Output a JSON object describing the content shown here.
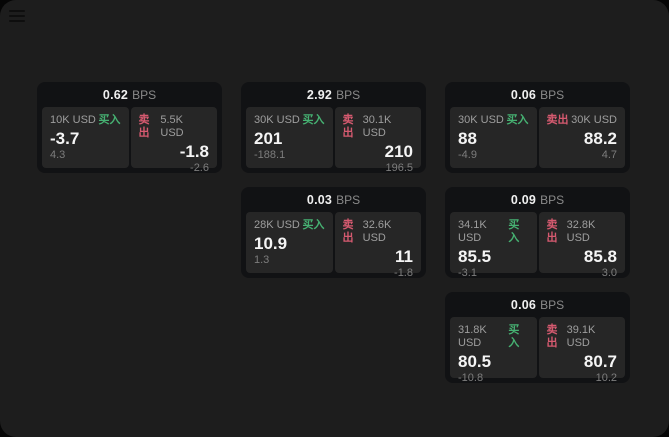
{
  "labels": {
    "bps_suffix": "BPS",
    "buy": "买入",
    "sell": "卖出"
  },
  "colors": {
    "buy_green": "#46b172",
    "sell_red": "#d65a70",
    "window_bg": "#1d1d1d",
    "card_bg": "#111214",
    "panel_bg": "#262626"
  },
  "icons": {
    "menu": "hamburger-menu"
  },
  "cards": [
    {
      "row": 1,
      "col": 1,
      "bps": "0.62",
      "buy": {
        "amount": "10K USD",
        "value": "-3.7",
        "delta": "4.3"
      },
      "sell": {
        "amount": "5.5K USD",
        "value": "-1.8",
        "delta": "-2.6"
      }
    },
    {
      "row": 1,
      "col": 2,
      "bps": "2.92",
      "buy": {
        "amount": "30K USD",
        "value": "201",
        "delta": "-188.1"
      },
      "sell": {
        "amount": "30.1K USD",
        "value": "210",
        "delta": "196.5"
      }
    },
    {
      "row": 1,
      "col": 3,
      "bps": "0.06",
      "buy": {
        "amount": "30K USD",
        "value": "88",
        "delta": "-4.9"
      },
      "sell": {
        "amount": "30K USD",
        "value": "88.2",
        "delta": "4.7"
      }
    },
    {
      "row": 2,
      "col": 2,
      "bps": "0.03",
      "buy": {
        "amount": "28K USD",
        "value": "10.9",
        "delta": "1.3"
      },
      "sell": {
        "amount": "32.6K USD",
        "value": "11",
        "delta": "-1.8"
      }
    },
    {
      "row": 2,
      "col": 3,
      "bps": "0.09",
      "buy": {
        "amount": "34.1K USD",
        "value": "85.5",
        "delta": "-3.1"
      },
      "sell": {
        "amount": "32.8K USD",
        "value": "85.8",
        "delta": "3.0"
      }
    },
    {
      "row": 3,
      "col": 3,
      "bps": "0.06",
      "buy": {
        "amount": "31.8K USD",
        "value": "80.5",
        "delta": "-10.8"
      },
      "sell": {
        "amount": "39.1K USD",
        "value": "80.7",
        "delta": "10.2"
      }
    }
  ]
}
